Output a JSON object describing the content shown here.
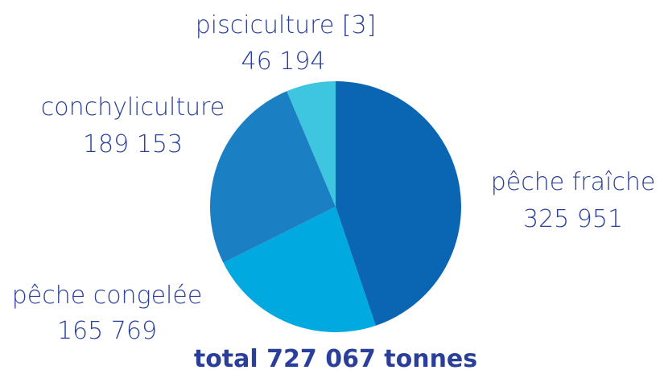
{
  "chart_data": {
    "type": "pie",
    "slices": [
      {
        "name": "pêche fraîche",
        "value": 325951,
        "value_label": "325 951",
        "color": "#0a66b2"
      },
      {
        "name": "pêche congelée",
        "value": 165769,
        "value_label": "165 769",
        "color": "#00a9df"
      },
      {
        "name": "conchyliculture",
        "value": 189153,
        "value_label": "189 153",
        "color": "#1b7fc3"
      },
      {
        "name": "pisciculture [3]",
        "value": 46194,
        "value_label": "46 194",
        "color": "#3ec5e0"
      }
    ],
    "total_label": "total 727 067 tonnes",
    "start_angle": "top",
    "direction": "clockwise"
  }
}
